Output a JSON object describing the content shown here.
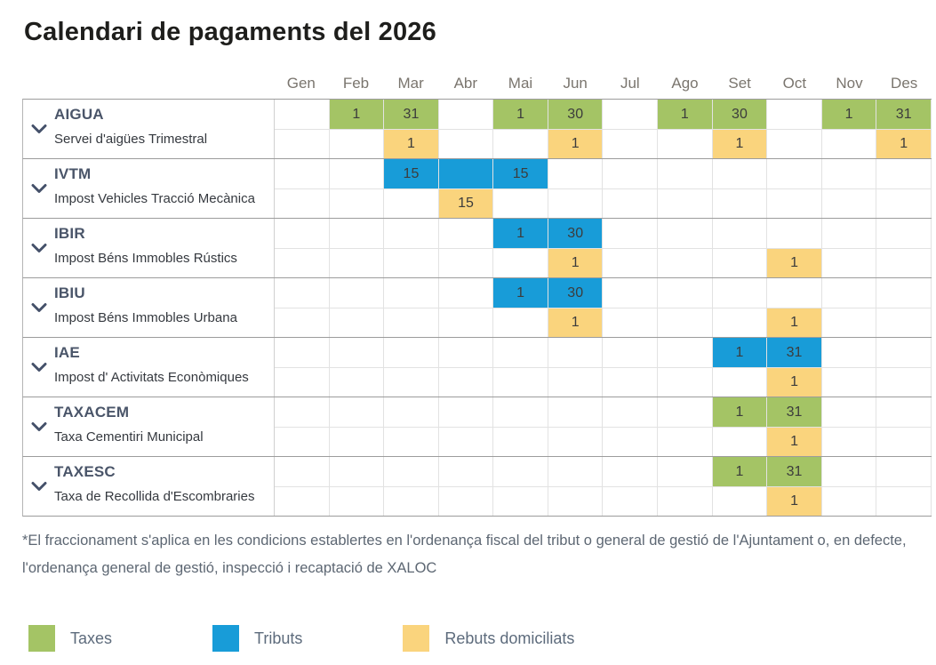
{
  "title": "Calendari de pagaments del 2026",
  "months": [
    "Gen",
    "Feb",
    "Mar",
    "Abr",
    "Mai",
    "Jun",
    "Jul",
    "Ago",
    "Set",
    "Oct",
    "Nov",
    "Des"
  ],
  "colors": {
    "taxes": "#a4c465",
    "tributs": "#189cd8",
    "rebuts": "#fad47d"
  },
  "rows": [
    {
      "code": "AIGUA",
      "description": "Servei d'aigües Trimestral",
      "type": "taxes",
      "main": {
        "Feb": "1",
        "Mar": "31",
        "Mai": "1",
        "Jun": "30",
        "Ago": "1",
        "Set": "30",
        "Nov": "1",
        "Des": "31"
      },
      "sub": {
        "Mar": "1",
        "Jun": "1",
        "Set": "1",
        "Des": "1"
      }
    },
    {
      "code": "IVTM",
      "description": "Impost Vehicles Tracció Mecànica",
      "type": "tributs",
      "main": {
        "Mar": "15",
        "Abr": "",
        "Mai": "15"
      },
      "sub": {
        "Abr": "15"
      }
    },
    {
      "code": "IBIR",
      "description": "Impost Béns Immobles Rústics",
      "type": "tributs",
      "main": {
        "Mai": "1",
        "Jun": "30"
      },
      "sub": {
        "Jun": "1",
        "Oct": "1"
      }
    },
    {
      "code": "IBIU",
      "description": "Impost Béns Immobles Urbana",
      "type": "tributs",
      "main": {
        "Mai": "1",
        "Jun": "30"
      },
      "sub": {
        "Jun": "1",
        "Oct": "1"
      }
    },
    {
      "code": "IAE",
      "description": "Impost d' Activitats Econòmiques",
      "type": "tributs",
      "main": {
        "Set": "1",
        "Oct": "31"
      },
      "sub": {
        "Oct": "1"
      }
    },
    {
      "code": "TAXACEM",
      "description": "Taxa Cementiri Municipal",
      "type": "taxes",
      "main": {
        "Set": "1",
        "Oct": "31"
      },
      "sub": {
        "Oct": "1"
      }
    },
    {
      "code": "TAXESC",
      "description": "Taxa de Recollida d'Escombraries",
      "type": "taxes",
      "main": {
        "Set": "1",
        "Oct": "31"
      },
      "sub": {
        "Oct": "1"
      }
    }
  ],
  "footnote": "*El fraccionament s'aplica en les condicions establertes en l'ordenança fiscal del tribut o general de gestió de l'Ajuntament o, en defecte, l'ordenança general de gestió, inspecció i recaptació de XALOC",
  "legend": [
    {
      "label": "Taxes",
      "color_key": "taxes"
    },
    {
      "label": "Tributs",
      "color_key": "tributs"
    },
    {
      "label": "Rebuts domiciliats",
      "color_key": "rebuts"
    }
  ]
}
